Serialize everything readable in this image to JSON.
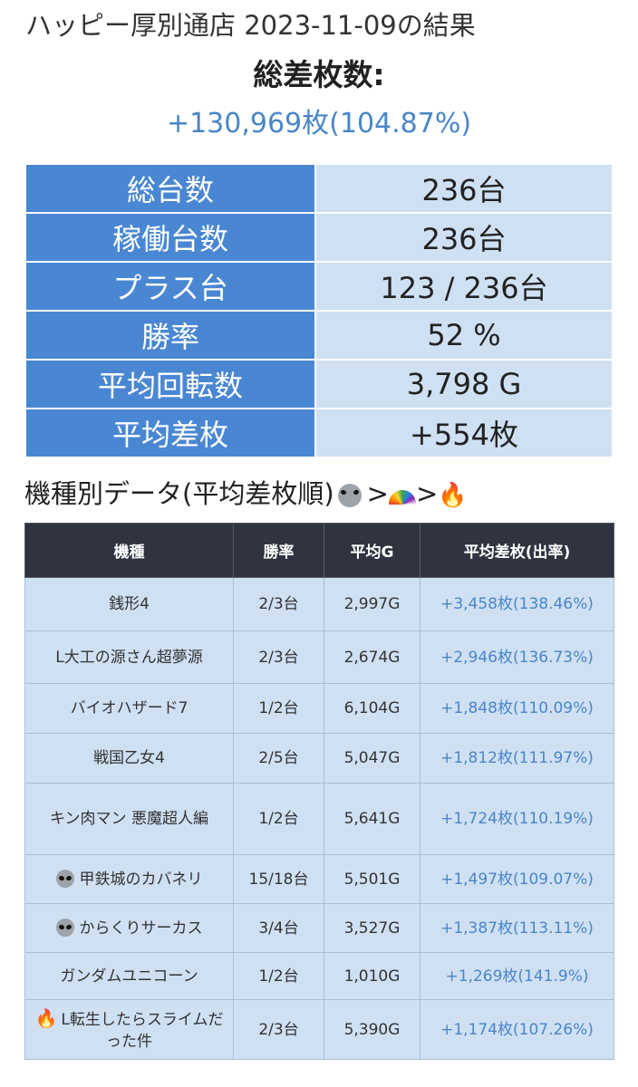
{
  "header": {
    "title": "ハッピー厚別通店 2023-11-09の結果",
    "total_label": "総差枚数:",
    "total_value": "+130,969枚(104.87%)"
  },
  "summary": [
    {
      "label": "総台数",
      "value": "236台"
    },
    {
      "label": "稼働台数",
      "value": "236台"
    },
    {
      "label": "プラス台",
      "value": "123 / 236台"
    },
    {
      "label": "勝率",
      "value": "52 %"
    },
    {
      "label": "平均回転数",
      "value": "3,798 G"
    },
    {
      "label": "平均差枚",
      "value": "+554枚"
    }
  ],
  "section": {
    "title": "機種別データ(平均差枚順)",
    "sep1": ">",
    "sep2": ">",
    "icons": [
      "alien-icon",
      "rainbow-icon",
      "fire-icon"
    ]
  },
  "table": {
    "headers": [
      "機種",
      "勝率",
      "平均G",
      "平均差枚(出率)"
    ],
    "rows": [
      {
        "icon": "",
        "name": "銭形4",
        "win": "2/3台",
        "avg_g": "2,997G",
        "diff": "+3,458枚(138.46%)"
      },
      {
        "icon": "",
        "name": "L大工の源さん超夢源",
        "win": "2/3台",
        "avg_g": "2,674G",
        "diff": "+2,946枚(136.73%)"
      },
      {
        "icon": "",
        "name": "バイオハザード7",
        "win": "1/2台",
        "avg_g": "6,104G",
        "diff": "+1,848枚(110.09%)"
      },
      {
        "icon": "",
        "name": "戦国乙女4",
        "win": "2/5台",
        "avg_g": "5,047G",
        "diff": "+1,812枚(111.97%)"
      },
      {
        "icon": "",
        "name": "キン肉マン 悪魔超人編",
        "win": "1/2台",
        "avg_g": "5,641G",
        "diff": "+1,724枚(110.19%)"
      },
      {
        "icon": "alien-icon",
        "name": "甲鉄城のカバネリ",
        "win": "15/18台",
        "avg_g": "5,501G",
        "diff": "+1,497枚(109.07%)"
      },
      {
        "icon": "alien-icon",
        "name": "からくりサーカス",
        "win": "3/4台",
        "avg_g": "3,527G",
        "diff": "+1,387枚(113.11%)"
      },
      {
        "icon": "",
        "name": "ガンダムユニコーン",
        "win": "1/2台",
        "avg_g": "1,010G",
        "diff": "+1,269枚(141.9%)"
      },
      {
        "icon": "fire-icon",
        "name": "L転生したらスライムだった件",
        "win": "2/3台",
        "avg_g": "5,390G",
        "diff": "+1,174枚(107.26%)"
      }
    ]
  },
  "colors": {
    "accent": "#4a86c8",
    "summary_key_bg": "#4a87d3",
    "summary_value_bg": "#cfe0f3",
    "table_header_bg": "#2f3440"
  }
}
